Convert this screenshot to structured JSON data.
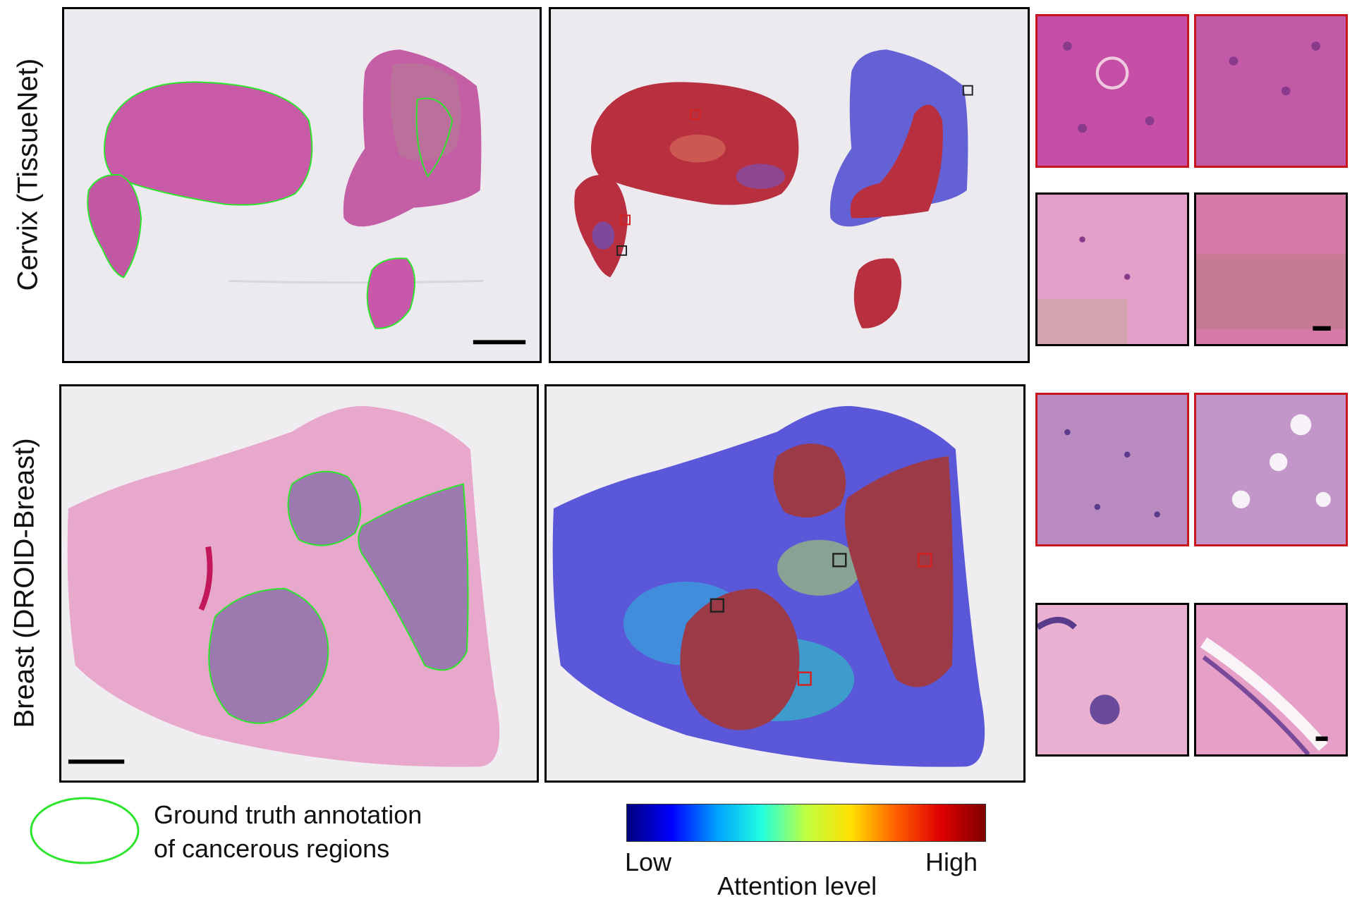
{
  "rows": [
    {
      "label": "Cervix (TissueNet)"
    },
    {
      "label": "Breast (DROID-Breast)"
    }
  ],
  "legend": {
    "annotation_line1": "Ground truth annotation",
    "annotation_line2": "of cancerous regions",
    "annotation_color": "#2ee52e"
  },
  "colorbar": {
    "low_label": "Low",
    "high_label": "High",
    "title": "Attention level",
    "stops": [
      "#00007f",
      "#0000ff",
      "#00a0ff",
      "#20ffe0",
      "#c0ff40",
      "#ffe000",
      "#ff6000",
      "#e00000",
      "#7f0000"
    ]
  },
  "colors": {
    "tissue_pink": "#c95aa8",
    "tissue_breast": "#e8a8cc",
    "tissue_breast_dense": "#9c7ab0",
    "attention_high": "#b8303f",
    "attention_low": "#5a58d8",
    "box_red": "#d42020",
    "box_black": "#222222"
  }
}
